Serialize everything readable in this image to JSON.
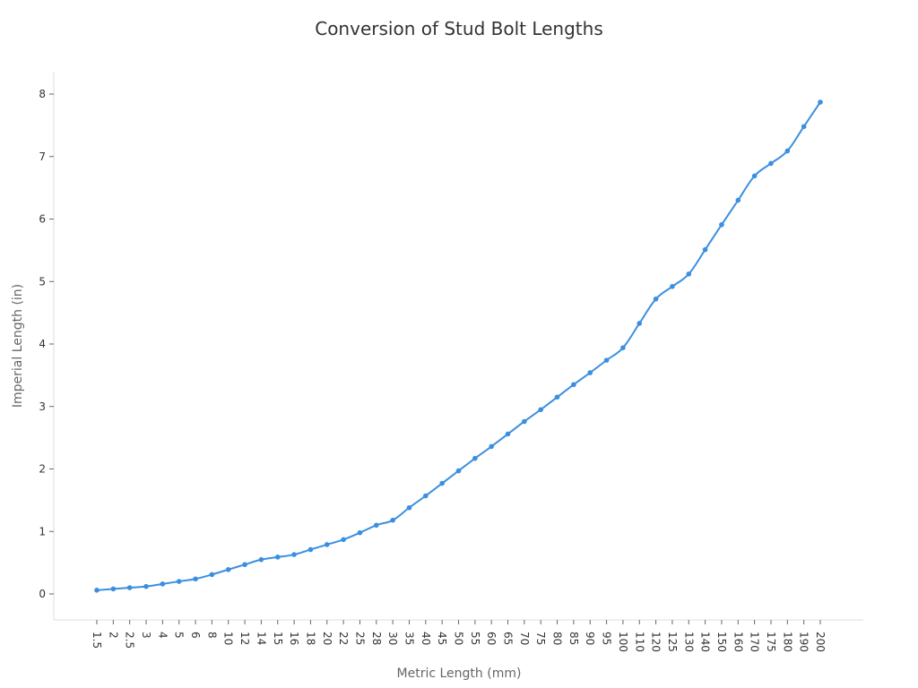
{
  "chart_data": {
    "type": "line",
    "title": "Conversion of Stud Bolt Lengths",
    "xlabel": "Metric Length (mm)",
    "ylabel": "Imperial Length (in)",
    "ylim": [
      -0.42,
      8.35
    ],
    "yticks": [
      0,
      1,
      2,
      3,
      4,
      5,
      6,
      7,
      8
    ],
    "grid": false,
    "legend": null,
    "line_color": "#3b8fe0",
    "categories": [
      "1.5",
      "2",
      "2.5",
      "3",
      "4",
      "5",
      "6",
      "8",
      "10",
      "12",
      "14",
      "15",
      "16",
      "18",
      "20",
      "22",
      "25",
      "28",
      "30",
      "35",
      "40",
      "45",
      "50",
      "55",
      "60",
      "65",
      "70",
      "75",
      "80",
      "85",
      "90",
      "95",
      "100",
      "110",
      "120",
      "125",
      "130",
      "140",
      "150",
      "160",
      "170",
      "175",
      "180",
      "190",
      "200"
    ],
    "series": [
      {
        "name": "Imperial Length (in)",
        "values": [
          0.06,
          0.08,
          0.1,
          0.12,
          0.16,
          0.2,
          0.24,
          0.31,
          0.39,
          0.47,
          0.55,
          0.59,
          0.63,
          0.71,
          0.79,
          0.87,
          0.98,
          1.1,
          1.18,
          1.38,
          1.57,
          1.77,
          1.97,
          2.17,
          2.36,
          2.56,
          2.76,
          2.95,
          3.15,
          3.35,
          3.54,
          3.74,
          3.94,
          4.33,
          4.72,
          4.92,
          5.12,
          5.51,
          5.91,
          6.3,
          6.69,
          6.89,
          7.09,
          7.48,
          7.87
        ]
      }
    ]
  }
}
